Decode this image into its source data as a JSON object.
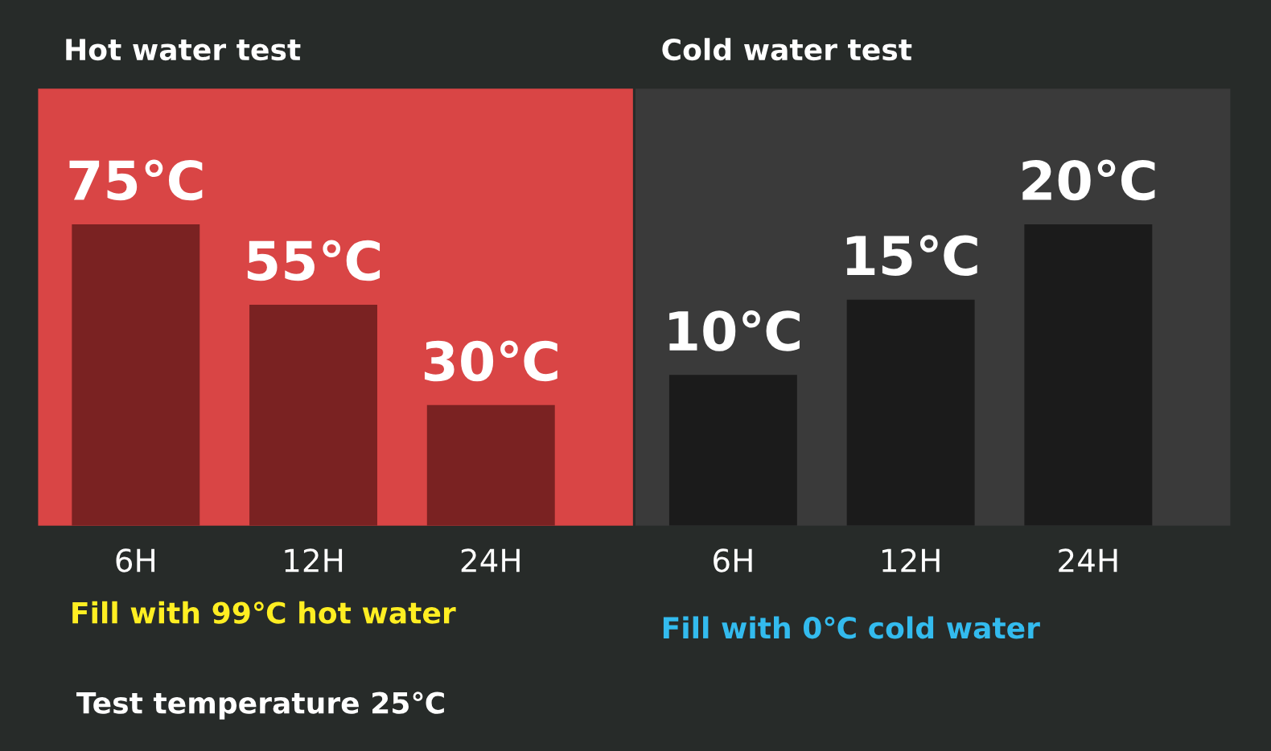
{
  "chart_data": [
    {
      "type": "bar",
      "title": "Hot water test",
      "categories": [
        "6H",
        "12H",
        "24H"
      ],
      "values": [
        75,
        55,
        30
      ],
      "color": "#7a2222",
      "value_labels": [
        "75℃",
        "55℃",
        "30℃"
      ],
      "annotations": [
        "Fill with 99℃ hot water",
        "Test temperature 25℃"
      ]
    },
    {
      "type": "bar",
      "title": "Cold water test",
      "categories": [
        "6H",
        "12H",
        "24H"
      ],
      "values": [
        10,
        15,
        20
      ],
      "color": "#1b1b1b",
      "value_labels": [
        "10℃",
        "15℃",
        "20℃"
      ],
      "annotations": [
        "Fill with 0℃ cold water"
      ]
    }
  ]
}
